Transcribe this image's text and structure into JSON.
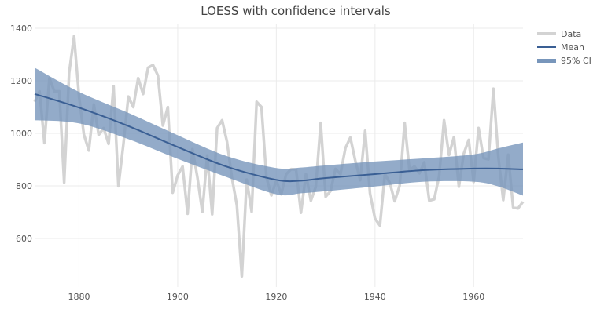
{
  "chart_data": {
    "type": "line",
    "title": "LOESS with confidence intervals",
    "xlabel": "",
    "ylabel": "",
    "xlim": [
      1871,
      1970
    ],
    "ylim": [
      415,
      1418
    ],
    "grid": true,
    "legend_position": "top-right",
    "x_ticks": [
      1880,
      1900,
      1920,
      1940,
      1960
    ],
    "y_ticks": [
      600,
      800,
      1000,
      1200,
      1400
    ],
    "colors": {
      "data": "#d3d3d3",
      "mean": "#3a5f94",
      "ci": "#7896bb",
      "grid": "#ebebeb",
      "text": "#555555"
    },
    "legend": [
      {
        "key": "data",
        "label": "Data"
      },
      {
        "key": "mean",
        "label": "Mean"
      },
      {
        "key": "ci",
        "label": "95% CI"
      }
    ],
    "data_series": {
      "name": "Data",
      "x_start": 1871,
      "values": [
        1120,
        1160,
        963,
        1210,
        1160,
        1160,
        813,
        1230,
        1370,
        1140,
        995,
        935,
        1110,
        994,
        1020,
        960,
        1180,
        799,
        958,
        1140,
        1100,
        1210,
        1150,
        1250,
        1260,
        1220,
        1030,
        1100,
        774,
        840,
        874,
        694,
        940,
        833,
        701,
        916,
        692,
        1020,
        1050,
        969,
        831,
        726,
        456,
        824,
        702,
        1120,
        1100,
        832,
        764,
        821,
        768,
        845,
        864,
        862,
        698,
        845,
        744,
        796,
        1040,
        759,
        781,
        865,
        845,
        944,
        984,
        897,
        822,
        1010,
        771,
        676,
        649,
        846,
        812,
        742,
        801,
        1040,
        860,
        874,
        848,
        890,
        744,
        749,
        838,
        1050,
        918,
        986,
        797,
        923,
        975,
        815,
        1020,
        906,
        901,
        1170,
        912,
        746,
        919,
        718,
        714,
        740
      ]
    },
    "fit": {
      "x": [
        1871,
        1880,
        1890,
        1900,
        1910,
        1920,
        1925,
        1930,
        1940,
        1950,
        1960,
        1965,
        1970
      ],
      "mean": [
        1150,
        1098,
        1028,
        948,
        873,
        823,
        820,
        830,
        845,
        860,
        866,
        866,
        863
      ],
      "lower": [
        1050,
        1038,
        978,
        903,
        833,
        768,
        772,
        780,
        798,
        816,
        816,
        798,
        763
      ],
      "upper": [
        1250,
        1158,
        1078,
        993,
        913,
        868,
        870,
        878,
        893,
        905,
        920,
        943,
        965
      ]
    }
  }
}
